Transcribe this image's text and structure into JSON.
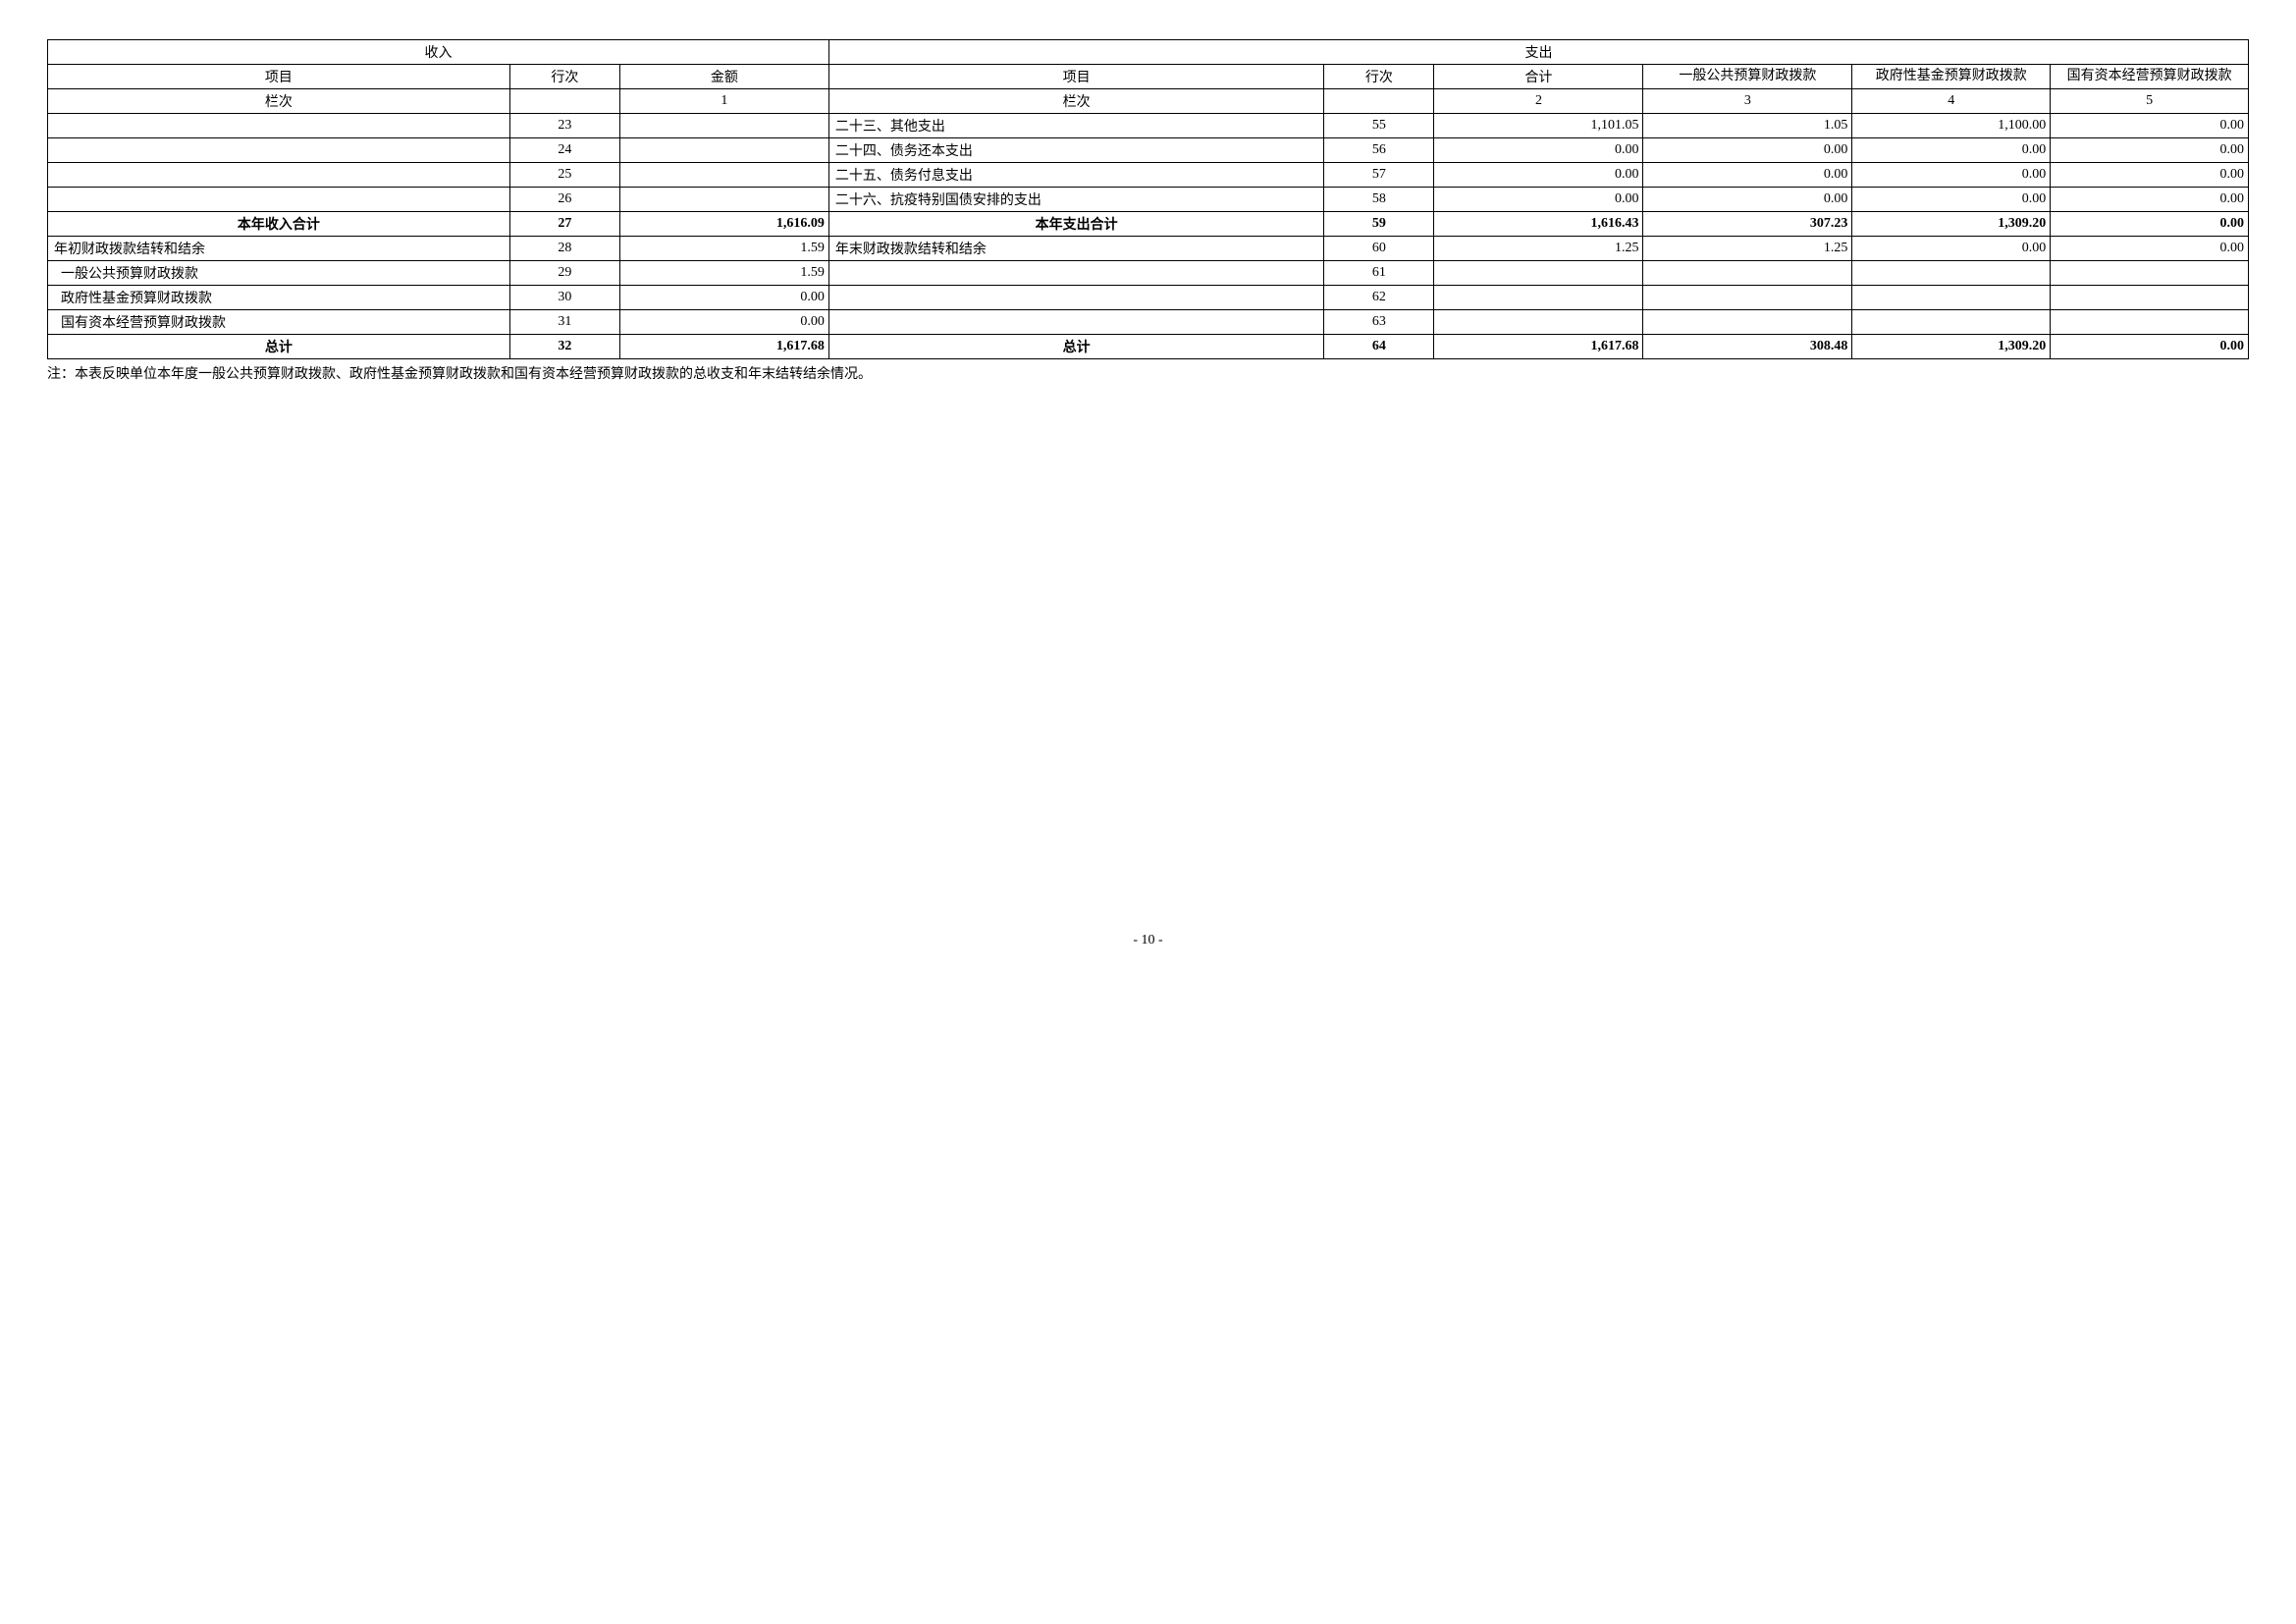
{
  "header": {
    "income": "收入",
    "expense": "支出",
    "item": "项目",
    "row": "行次",
    "amount": "金额",
    "heji": "合计",
    "colA": "一般公共预算财政拨款",
    "colB": "政府性基金预算财政拨款",
    "colC": "国有资本经营预算财政拨款",
    "lanci": "栏次",
    "n1": "1",
    "n2": "2",
    "n3": "3",
    "n4": "4",
    "n5": "5"
  },
  "rows": [
    {
      "in_item": "",
      "in_row": "23",
      "in_amt": "",
      "out_item": "二十三、其他支出",
      "out_row": "55",
      "heji": "1,101.05",
      "a": "1.05",
      "b": "1,100.00",
      "c": "0.00"
    },
    {
      "in_item": "",
      "in_row": "24",
      "in_amt": "",
      "out_item": "二十四、债务还本支出",
      "out_row": "56",
      "heji": "0.00",
      "a": "0.00",
      "b": "0.00",
      "c": "0.00"
    },
    {
      "in_item": "",
      "in_row": "25",
      "in_amt": "",
      "out_item": "二十五、债务付息支出",
      "out_row": "57",
      "heji": "0.00",
      "a": "0.00",
      "b": "0.00",
      "c": "0.00"
    },
    {
      "in_item": "",
      "in_row": "26",
      "in_amt": "",
      "out_item": "二十六、抗疫特别国债安排的支出",
      "out_row": "58",
      "heji": "0.00",
      "a": "0.00",
      "b": "0.00",
      "c": "0.00"
    },
    {
      "bold": true,
      "in_item": "本年收入合计",
      "in_row": "27",
      "in_amt": "1,616.09",
      "out_item": "本年支出合计",
      "out_row": "59",
      "heji": "1,616.43",
      "a": "307.23",
      "b": "1,309.20",
      "c": "0.00"
    },
    {
      "in_item": "年初财政拨款结转和结余",
      "in_row": "28",
      "in_amt": "1.59",
      "out_item": "年末财政拨款结转和结余",
      "out_row": "60",
      "heji": "1.25",
      "a": "1.25",
      "b": "0.00",
      "c": "0.00"
    },
    {
      "in_item": "  一般公共预算财政拨款",
      "in_row": "29",
      "in_amt": "1.59",
      "out_item": "",
      "out_row": "61",
      "heji": "",
      "a": "",
      "b": "",
      "c": ""
    },
    {
      "in_item": "  政府性基金预算财政拨款",
      "in_row": "30",
      "in_amt": "0.00",
      "out_item": "",
      "out_row": "62",
      "heji": "",
      "a": "",
      "b": "",
      "c": ""
    },
    {
      "in_item": "  国有资本经营预算财政拨款",
      "in_row": "31",
      "in_amt": "0.00",
      "out_item": "",
      "out_row": "63",
      "heji": "",
      "a": "",
      "b": "",
      "c": ""
    },
    {
      "bold": true,
      "in_item": "总计",
      "in_row": "32",
      "in_amt": "1,617.68",
      "out_item": "总计",
      "out_row": "64",
      "heji": "1,617.68",
      "a": "308.48",
      "b": "1,309.20",
      "c": "0.00"
    }
  ],
  "note": "注：本表反映单位本年度一般公共预算财政拨款、政府性基金预算财政拨款和国有资本经营预算财政拨款的总收支和年末结转结余情况。",
  "pageNumber": "- 10 -"
}
